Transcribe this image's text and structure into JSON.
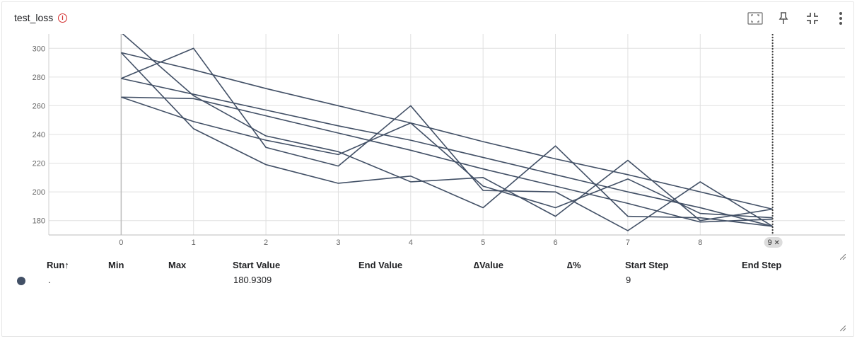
{
  "card": {
    "title": "test_loss",
    "info_glyph": "i",
    "toolbar": [
      "fit-domain-icon",
      "pin-icon",
      "collapse-icon",
      "more-vert-icon"
    ]
  },
  "chart_data": {
    "type": "line",
    "title": "test_loss",
    "xlabel": "",
    "ylabel": "",
    "x": [
      0,
      1,
      2,
      3,
      4,
      5,
      6,
      7,
      8,
      9
    ],
    "xlim": [
      -1,
      10
    ],
    "ylim": [
      170,
      310
    ],
    "yticks": [
      180,
      200,
      220,
      240,
      260,
      280,
      300
    ],
    "grid": true,
    "line_color": "#425066",
    "series": [
      {
        "values": [
          311,
          267,
          239,
          228,
          207,
          210,
          183,
          222,
          180,
          188
        ]
      },
      {
        "values": [
          297,
          244,
          219,
          206,
          211,
          189,
          232,
          183,
          182,
          176
        ]
      },
      {
        "values": [
          279,
          300,
          231,
          218,
          260,
          201,
          200,
          173,
          207,
          176
        ]
      },
      {
        "values": [
          266,
          265,
          253,
          241,
          229,
          216,
          204,
          192,
          179,
          181
        ]
      },
      {
        "values": [
          279,
          268,
          257,
          246,
          236,
          224,
          212,
          200,
          189,
          176
        ]
      },
      {
        "values": [
          297,
          285,
          272,
          260,
          248,
          235,
          223,
          212,
          200,
          188
        ]
      },
      {
        "values": [
          266,
          249,
          236,
          226,
          248,
          204,
          189,
          209,
          185,
          182
        ]
      }
    ],
    "cursor": {
      "step": 9,
      "label": "9",
      "close_glyph": "✕"
    }
  },
  "table": {
    "columns": [
      "Run",
      "Min",
      "Max",
      "Start Value",
      "End Value",
      "∆Value",
      "∆%",
      "Start Step",
      "End Step"
    ],
    "sort_glyph": "↑",
    "rows": [
      {
        "color": "#425066",
        "run": ".",
        "min": "",
        "max": "",
        "start_value": "180.9309",
        "end_value": "",
        "delta_value": "",
        "delta_pct": "",
        "start_step": "9",
        "end_step": ""
      }
    ]
  }
}
